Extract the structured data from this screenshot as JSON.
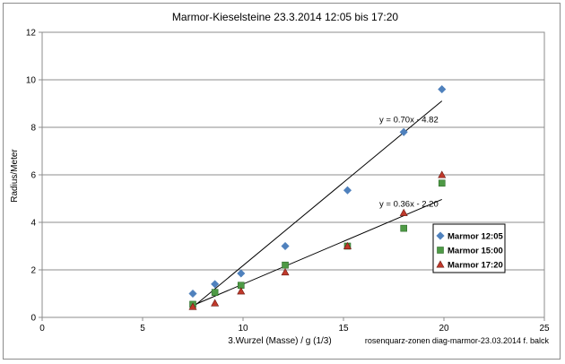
{
  "chart_data": {
    "type": "scatter",
    "title": "Marmor-Kieselsteine 23.3.2014  12:05 bis 17:20",
    "xlabel": "3.Wurzel (Masse) / g (1/3)",
    "ylabel": "Radius/Meter",
    "xlim": [
      0,
      25
    ],
    "ylim": [
      0,
      12
    ],
    "xticks": [
      0,
      5,
      10,
      15,
      20,
      25
    ],
    "yticks": [
      0,
      2,
      4,
      6,
      8,
      10,
      12
    ],
    "grid": "horizontal",
    "legend_position": "right",
    "footnote": "rosenquarz-zonen diag-marmor-23.03.2014 f. balck",
    "series": [
      {
        "name": "Marmor 12:05",
        "marker": "diamond",
        "color": "#4f81bd",
        "x": [
          7.5,
          8.6,
          9.9,
          12.1,
          15.2,
          18.0,
          19.9
        ],
        "y": [
          1.0,
          1.4,
          1.85,
          3.0,
          5.35,
          7.8,
          9.6
        ]
      },
      {
        "name": "Marmor 15:00",
        "marker": "square",
        "color": "#4e9a45",
        "x": [
          7.5,
          8.6,
          9.9,
          12.1,
          15.2,
          18.0,
          19.9
        ],
        "y": [
          0.55,
          1.05,
          1.35,
          2.2,
          3.0,
          3.75,
          5.65
        ]
      },
      {
        "name": "Marmor 17:20",
        "marker": "triangle",
        "color": "#c0392b",
        "x": [
          7.5,
          8.6,
          9.9,
          12.1,
          15.2,
          18.0,
          19.9
        ],
        "y": [
          0.45,
          0.6,
          1.1,
          1.9,
          3.0,
          4.4,
          6.0
        ]
      }
    ],
    "trendlines": [
      {
        "label": "y = 0.70x - 4.82",
        "x_range": [
          7.5,
          19.9
        ],
        "slope": 0.7,
        "intercept": -4.82
      },
      {
        "label": "y = 0.36x - 2.20",
        "x_range": [
          7.5,
          19.9
        ],
        "slope": 0.36,
        "intercept": -2.2
      }
    ]
  }
}
